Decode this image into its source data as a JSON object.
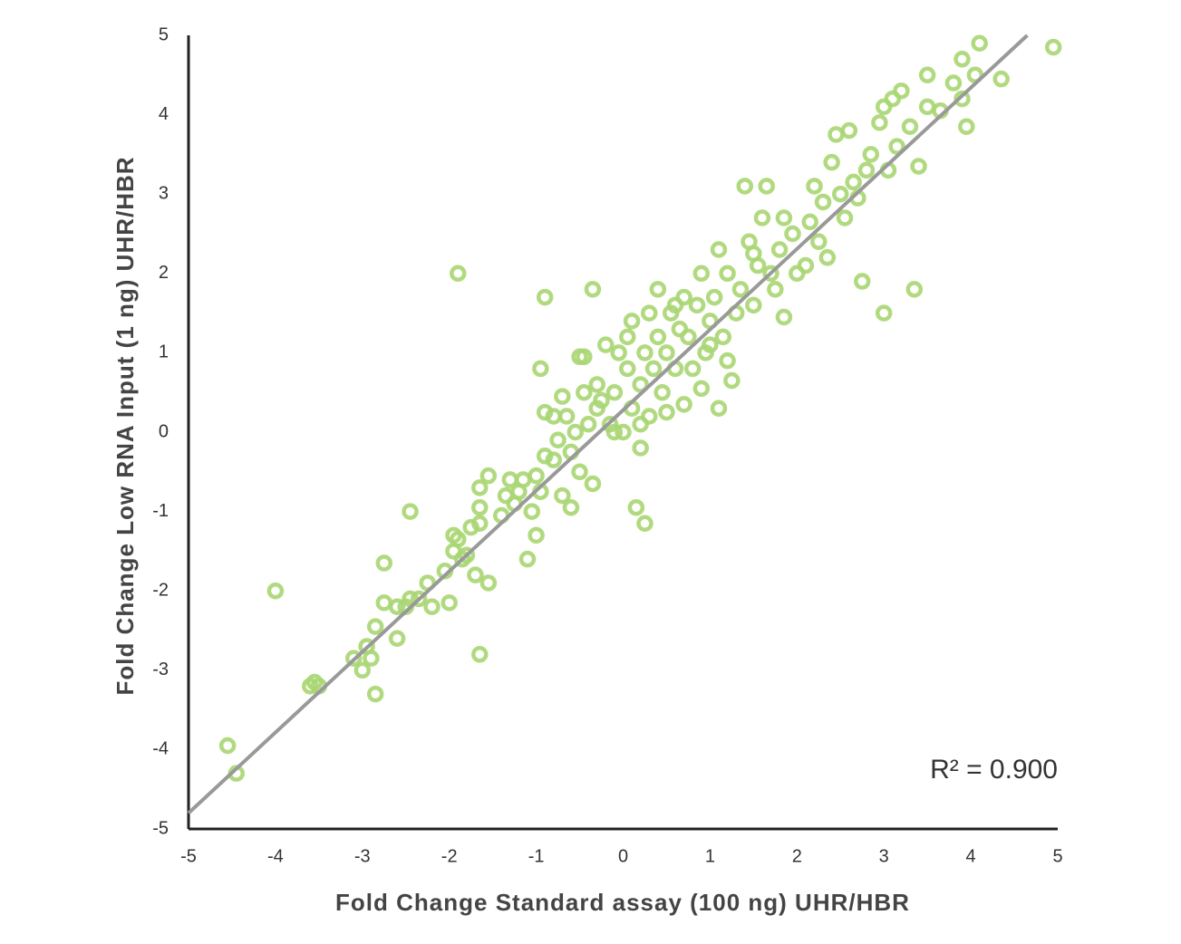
{
  "chart_data": {
    "type": "scatter",
    "x_label": "Fold Change Standard assay (100 ng) UHR/HBR",
    "y_label": "Fold Change Low RNA Input (1 ng) UHR/HBR",
    "annotation": "R² = 0.900",
    "xlim": [
      -5,
      5
    ],
    "xticks": [
      -5,
      -4,
      -3,
      -2,
      -1,
      0,
      1,
      2,
      3,
      4,
      5
    ],
    "ylim": [
      -5,
      5
    ],
    "yticks": [
      -5,
      -4,
      -3,
      -2,
      -1,
      0,
      1,
      2,
      3,
      4,
      5
    ],
    "grid": false,
    "color": "#a9d672",
    "x": [
      -4.55,
      -4.45,
      -4,
      -3.6,
      -3.5,
      -3.55,
      -3.1,
      -3,
      -2.95,
      -2.9,
      -2.85,
      -2.85,
      -2.75,
      -2.75,
      -2.6,
      -2.6,
      -2.5,
      -2.45,
      -2.45,
      -2.35,
      -2.25,
      -2.2,
      -2.05,
      -2,
      -1.95,
      -1.95,
      -1.9,
      -1.85,
      -1.9,
      -1.8,
      -1.75,
      -1.7,
      -1.65,
      -1.65,
      -1.65,
      -1.65,
      -1.55,
      -1.55,
      -1.4,
      -1.35,
      -1.3,
      -1.25,
      -1.2,
      -1.15,
      -1.1,
      -1.05,
      -1,
      -1,
      -0.95,
      -0.9,
      -0.9,
      -0.95,
      -0.9,
      -0.8,
      -0.8,
      -0.75,
      -0.7,
      -0.7,
      -0.65,
      -0.6,
      -0.6,
      -0.55,
      -0.5,
      -0.45,
      -0.5,
      -0.45,
      -0.4,
      -0.35,
      -0.35,
      -0.3,
      -0.25,
      -0.2,
      -0.15,
      -0.1,
      -0.05,
      0,
      0.05,
      0.1,
      0.1,
      0.15,
      0.2,
      0.2,
      0.25,
      0.25,
      0.3,
      0.35,
      0.4,
      0.4,
      0.45,
      0.5,
      0.5,
      0.55,
      0.6,
      0.65,
      0.7,
      0.75,
      0.8,
      0.85,
      0.9,
      0.9,
      0.95,
      1,
      1.05,
      1.1,
      1.1,
      1.15,
      1.2,
      1.2,
      1.25,
      1.3,
      1.35,
      1.4,
      1.45,
      1.5,
      1.55,
      1.6,
      1.65,
      1.7,
      1.75,
      1.8,
      1.85,
      1.85,
      1.95,
      2,
      2.1,
      2.15,
      2.2,
      2.25,
      2.3,
      2.35,
      2.4,
      2.45,
      2.5,
      2.55,
      2.6,
      2.65,
      2.7,
      2.75,
      2.8,
      2.85,
      2.95,
      3,
      3,
      3.05,
      3.1,
      3.15,
      3.2,
      3.3,
      3.35,
      3.4,
      3.5,
      3.5,
      3.65,
      3.8,
      3.9,
      3.9,
      3.95,
      4.05,
      4.1,
      4.35,
      4.95,
      0.05,
      -0.3,
      0.7,
      1,
      1.5,
      0.3,
      0.6,
      -0.1,
      0.2
    ],
    "values": [
      -3.95,
      -4.3,
      -2,
      -3.2,
      -3.2,
      -3.15,
      -2.85,
      -3,
      -2.7,
      -2.85,
      -2.45,
      -3.3,
      -2.15,
      -1.65,
      -2.6,
      -2.2,
      -2.2,
      -2.1,
      -1,
      -2.1,
      -1.9,
      -2.2,
      -1.75,
      -2.15,
      -1.5,
      -1.3,
      -1.35,
      -1.6,
      2,
      -1.55,
      -1.2,
      -1.8,
      -2.8,
      -1.15,
      -0.95,
      -0.7,
      -1.9,
      -0.55,
      -1.05,
      -0.8,
      -0.6,
      -0.9,
      -0.75,
      -0.6,
      -1.6,
      -1,
      -1.3,
      -0.55,
      -0.75,
      -0.3,
      0.25,
      0.8,
      1.7,
      -0.35,
      0.2,
      -0.1,
      -0.8,
      0.45,
      0.2,
      -0.95,
      -0.25,
      0,
      0.95,
      0.95,
      -0.5,
      0.5,
      0.1,
      1.8,
      -0.65,
      0.3,
      0.4,
      1.1,
      0.1,
      0.5,
      1,
      0,
      0.8,
      0.3,
      1.4,
      -0.95,
      -0.2,
      0.6,
      1,
      -1.15,
      0.2,
      0.8,
      1.2,
      1.8,
      0.5,
      1,
      0.25,
      1.5,
      0.8,
      1.3,
      1.7,
      1.2,
      0.8,
      1.6,
      2,
      0.55,
      1,
      1.4,
      1.7,
      0.3,
      2.3,
      1.2,
      0.9,
      2,
      0.65,
      1.5,
      1.8,
      3.1,
      2.4,
      1.6,
      2.1,
      2.7,
      3.1,
      2,
      1.8,
      2.3,
      1.45,
      2.7,
      2.5,
      2,
      2.1,
      2.65,
      3.1,
      2.4,
      2.9,
      2.2,
      3.4,
      3.75,
      3,
      2.7,
      3.8,
      3.15,
      2.95,
      1.9,
      3.3,
      3.5,
      3.9,
      1.5,
      4.1,
      3.3,
      4.2,
      3.6,
      4.3,
      3.85,
      1.8,
      3.35,
      4.1,
      4.5,
      4.05,
      4.4,
      4.7,
      4.2,
      3.85,
      4.5,
      4.9,
      4.45,
      4.85,
      1.2,
      0.6,
      0.35,
      1.1,
      2.25,
      1.5,
      1.6,
      0,
      0.1
    ],
    "trendline": {
      "x": [
        -5,
        4.65
      ],
      "values": [
        -4.8,
        5
      ],
      "color": "#999999"
    }
  }
}
